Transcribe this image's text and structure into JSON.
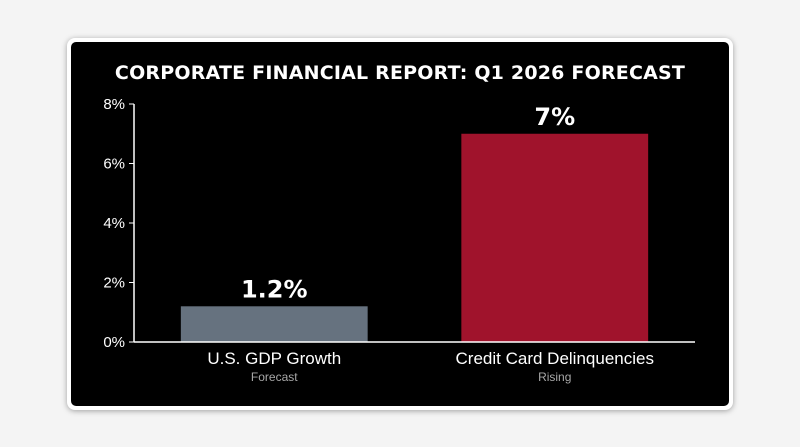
{
  "chart_data": {
    "type": "bar",
    "title": "CORPORATE FINANCIAL REPORT: Q1 2026 FORECAST",
    "categories": [
      "U.S. GDP Growth",
      "Credit Card Delinquencies"
    ],
    "subtitles": [
      "Forecast",
      "Rising"
    ],
    "values": [
      1.2,
      7
    ],
    "value_labels": [
      "1.2%",
      "7%"
    ],
    "colors": [
      "#66727f",
      "#a0132c"
    ],
    "ylim": [
      0,
      8
    ],
    "yticks": [
      0,
      2,
      4,
      6,
      8
    ],
    "ytick_labels": [
      "0%",
      "2%",
      "4%",
      "6%",
      "8%"
    ],
    "grid": false,
    "xlabel": "",
    "ylabel": ""
  }
}
